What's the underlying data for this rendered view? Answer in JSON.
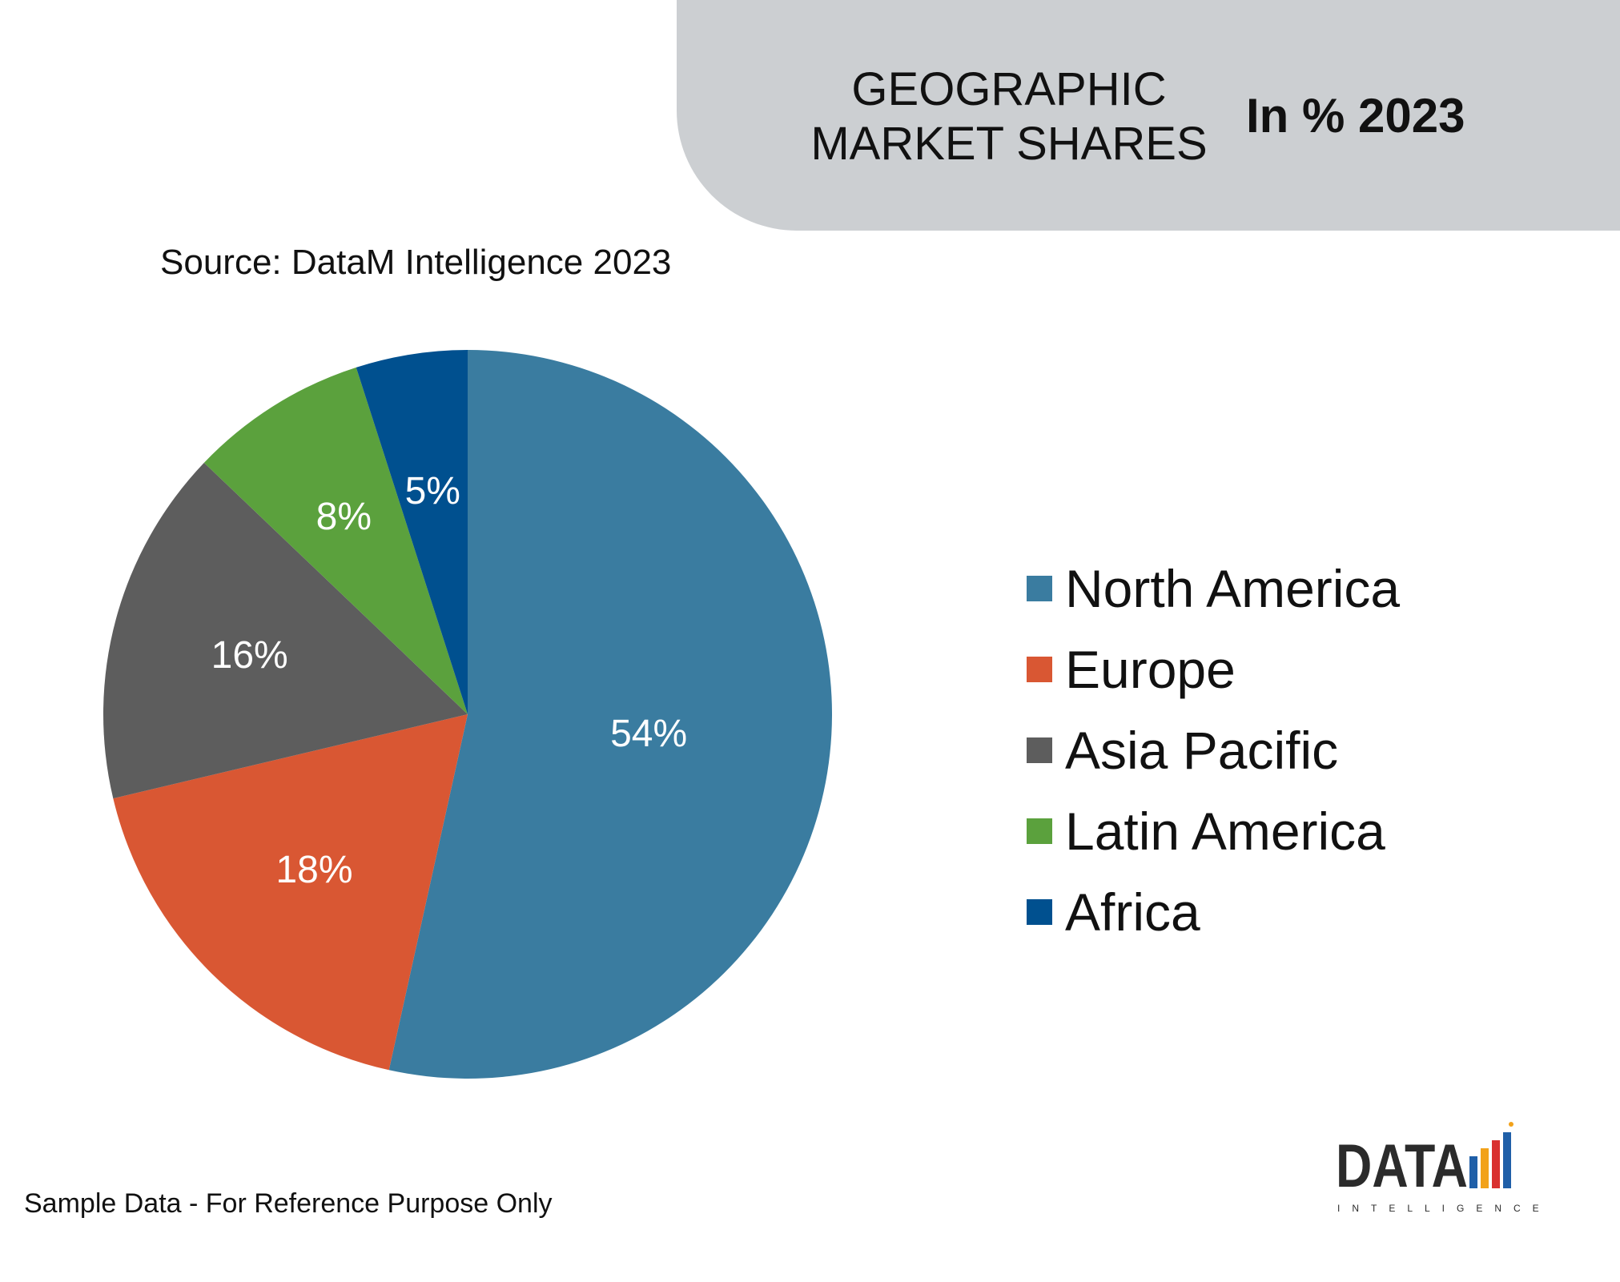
{
  "header": {
    "title_line1": "GEOGRAPHIC",
    "title_line2": "MARKET SHARES",
    "subtitle": "In % 2023"
  },
  "source": "Source: DataM Intelligence 2023",
  "footer": "Sample Data - For Reference Purpose Only",
  "logo": {
    "main": "DATA",
    "sub": "INTELLIGENCE"
  },
  "chart_data": {
    "type": "pie",
    "title": "GEOGRAPHIC MARKET SHARES",
    "categories": [
      "North America",
      "Europe",
      "Asia Pacific",
      "Latin America",
      "Africa"
    ],
    "values": [
      54,
      18,
      16,
      8,
      5
    ],
    "labels": [
      "54%",
      "18%",
      "16%",
      "8%",
      "5%"
    ],
    "colors": [
      "#3a7ca0",
      "#d95733",
      "#5d5d5d",
      "#5ba13d",
      "#00508f"
    ],
    "start": "12 o'clock, clockwise",
    "legend_position": "right"
  }
}
